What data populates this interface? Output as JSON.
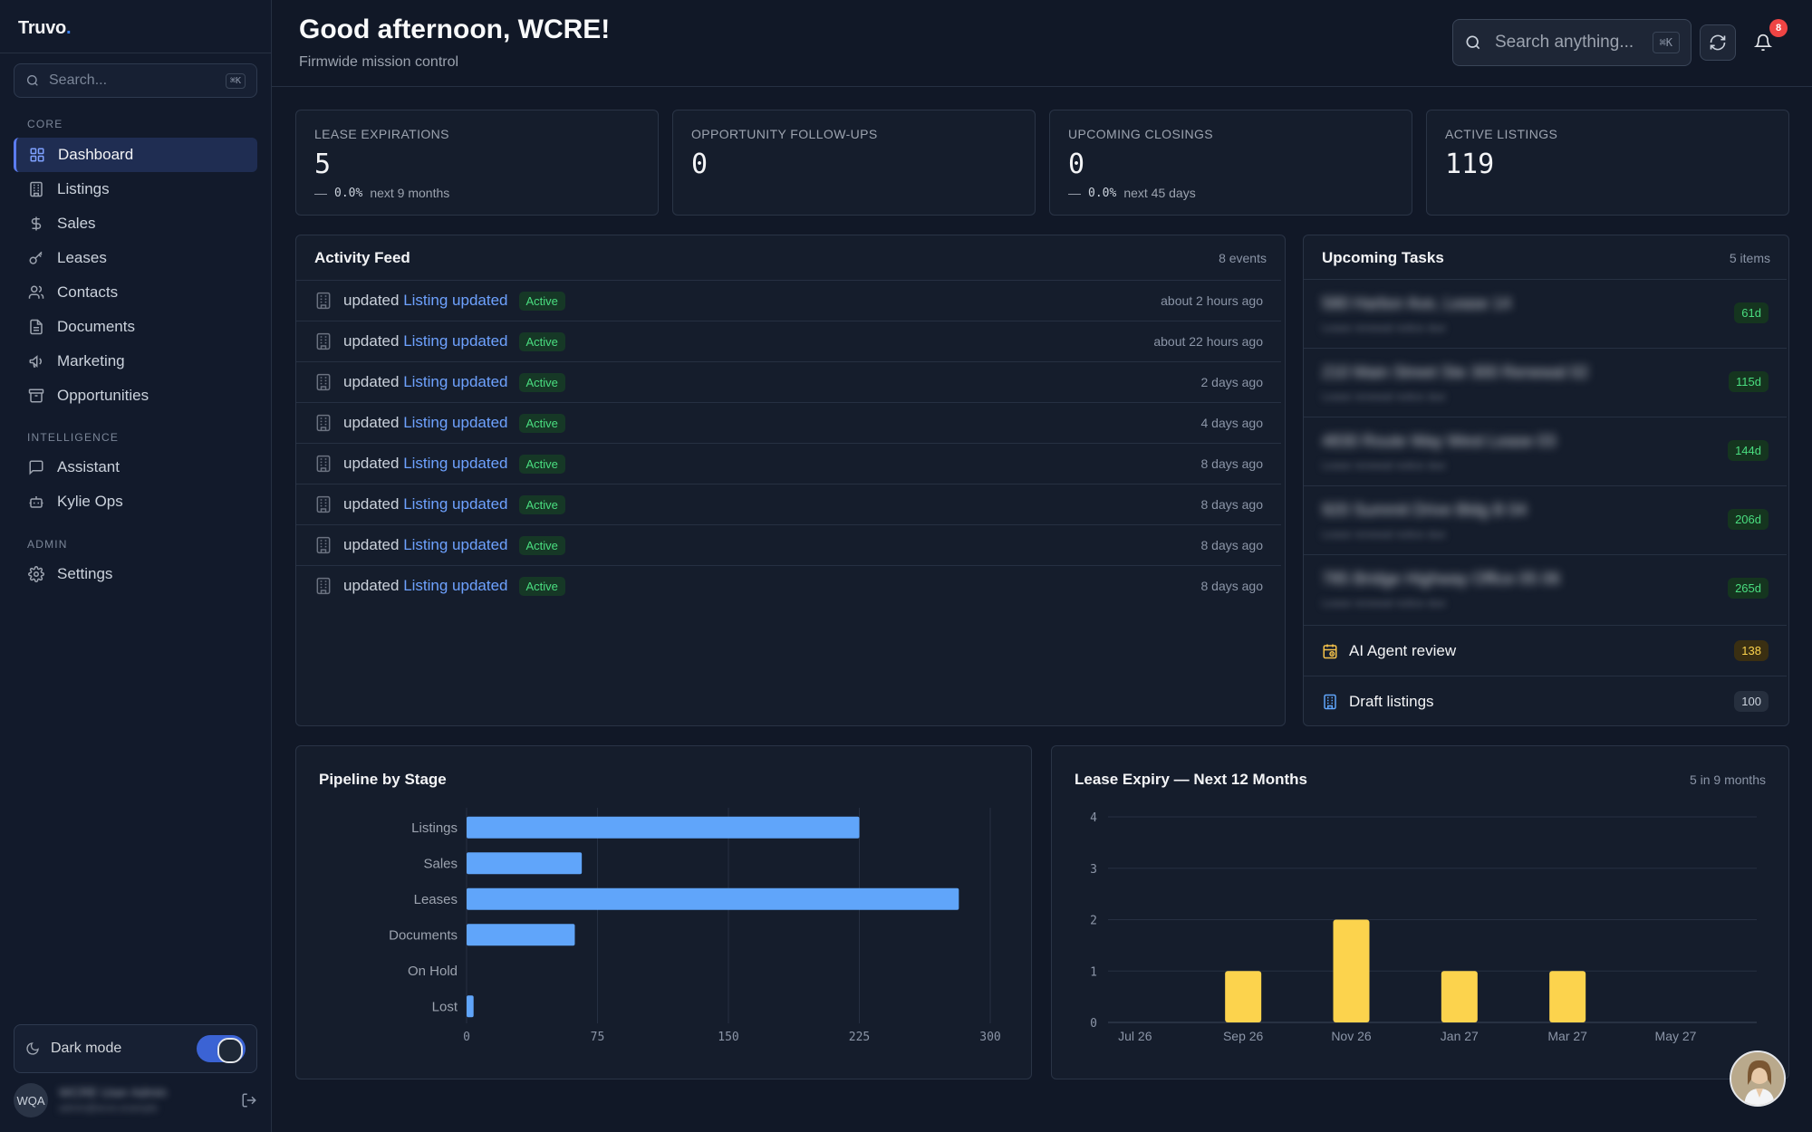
{
  "app": {
    "brand": "Truvo",
    "brand_dot": "."
  },
  "sidebar": {
    "search_placeholder": "Search...",
    "search_shortcut": "⌘K",
    "sections": {
      "core": "CORE",
      "intelligence": "INTELLIGENCE",
      "admin": "ADMIN"
    },
    "core_items": [
      {
        "label": "Dashboard",
        "icon": "grid-icon",
        "active": true
      },
      {
        "label": "Listings",
        "icon": "building-icon"
      },
      {
        "label": "Sales",
        "icon": "dollar-icon"
      },
      {
        "label": "Leases",
        "icon": "key-icon"
      },
      {
        "label": "Contacts",
        "icon": "users-icon"
      },
      {
        "label": "Documents",
        "icon": "document-icon"
      },
      {
        "label": "Marketing",
        "icon": "megaphone-icon"
      },
      {
        "label": "Opportunities",
        "icon": "archive-icon"
      }
    ],
    "intelligence_items": [
      {
        "label": "Assistant",
        "icon": "chat-icon"
      },
      {
        "label": "Kylie Ops",
        "icon": "bot-icon"
      }
    ],
    "admin_items": [
      {
        "label": "Settings",
        "icon": "gear-icon"
      }
    ],
    "theme_label": "Dark mode",
    "dark_mode_on": true,
    "user_initials": "WQA",
    "user_name": "WCRE User Admin",
    "user_email": "admin@wcre.example"
  },
  "header": {
    "greeting": "Good afternoon, WCRE!",
    "subtitle": "Firmwide mission control",
    "search_placeholder": "Search anything...",
    "search_shortcut": "⌘K",
    "notification_count": "8"
  },
  "stats": [
    {
      "label": "LEASE EXPIRATIONS",
      "value": "5",
      "trend_pct": "0.0%",
      "trend_note": "next 9 months"
    },
    {
      "label": "OPPORTUNITY FOLLOW-UPS",
      "value": "0"
    },
    {
      "label": "UPCOMING CLOSINGS",
      "value": "0",
      "trend_pct": "0.0%",
      "trend_note": "next 45 days"
    },
    {
      "label": "ACTIVE LISTINGS",
      "value": "119"
    }
  ],
  "activity": {
    "title": "Activity Feed",
    "count": "8 events",
    "items": [
      {
        "action": "updated",
        "link": "Listing updated",
        "status": "Active",
        "time": "about 2 hours ago"
      },
      {
        "action": "updated",
        "link": "Listing updated",
        "status": "Active",
        "time": "about 22 hours ago"
      },
      {
        "action": "updated",
        "link": "Listing updated",
        "status": "Active",
        "time": "2 days ago"
      },
      {
        "action": "updated",
        "link": "Listing updated",
        "status": "Active",
        "time": "4 days ago"
      },
      {
        "action": "updated",
        "link": "Listing updated",
        "status": "Active",
        "time": "8 days ago"
      },
      {
        "action": "updated",
        "link": "Listing updated",
        "status": "Active",
        "time": "8 days ago"
      },
      {
        "action": "updated",
        "link": "Listing updated",
        "status": "Active",
        "time": "8 days ago"
      },
      {
        "action": "updated",
        "link": "Listing updated",
        "status": "Active",
        "time": "8 days ago"
      }
    ]
  },
  "tasks": {
    "title": "Upcoming Tasks",
    "count": "5 items",
    "items": [
      {
        "title": "580 Harbor Ave, Lease 14",
        "meta": "Lease renewal notice due",
        "days": "61d"
      },
      {
        "title": "210 Main Street Ste 300 Renewal 02",
        "meta": "Lease renewal notice due",
        "days": "115d"
      },
      {
        "title": "4830 Route Way West Lease 03",
        "meta": "Lease renewal notice due",
        "days": "144d"
      },
      {
        "title": "920 Summit Drive Bldg B 04",
        "meta": "Lease renewal notice due",
        "days": "206d"
      },
      {
        "title": "785 Bridge Highway Office 05 06",
        "meta": "Lease renewal notice due",
        "days": "265d"
      }
    ],
    "extras": [
      {
        "label": "AI Agent review",
        "count": "138",
        "icon": "calendar-clock-icon"
      },
      {
        "label": "Draft listings",
        "count": "100",
        "icon": "building-icon"
      }
    ]
  },
  "colors": {
    "accent": "#5b7cf0",
    "bar_blue": "#60a5fa",
    "bar_yellow": "#fcd34d",
    "success": "#4ade80",
    "warning_bg": "#3a2f12"
  },
  "chart_data": [
    {
      "type": "bar",
      "orientation": "horizontal",
      "title": "Pipeline by Stage",
      "categories": [
        "Listings",
        "Sales",
        "Leases",
        "Documents",
        "On Hold",
        "Lost"
      ],
      "values": [
        225,
        66,
        282,
        62,
        0,
        4
      ],
      "xlim": [
        0,
        300
      ],
      "xticks": [
        "0",
        "75",
        "150",
        "225",
        "300"
      ],
      "grid": true
    },
    {
      "type": "bar",
      "title": "Lease Expiry — Next 12 Months",
      "note": "5 in 9 months",
      "categories": [
        "Jul 26",
        "Aug 26",
        "Sep 26",
        "Oct 26",
        "Nov 26",
        "Dec 26",
        "Jan 27",
        "Feb 27",
        "Mar 27",
        "Apr 27",
        "May 27",
        "Jun 27"
      ],
      "values": [
        0,
        0,
        1,
        0,
        2,
        0,
        1,
        0,
        1,
        0,
        0,
        0
      ],
      "xtick_labels": [
        "Jul 26",
        "Sep 26",
        "Nov 26",
        "Jan 27",
        "Mar 27",
        "May 27"
      ],
      "ylim": [
        0,
        4
      ],
      "yticks": [
        "0",
        "1",
        "2",
        "3",
        "4"
      ],
      "grid": true
    }
  ]
}
